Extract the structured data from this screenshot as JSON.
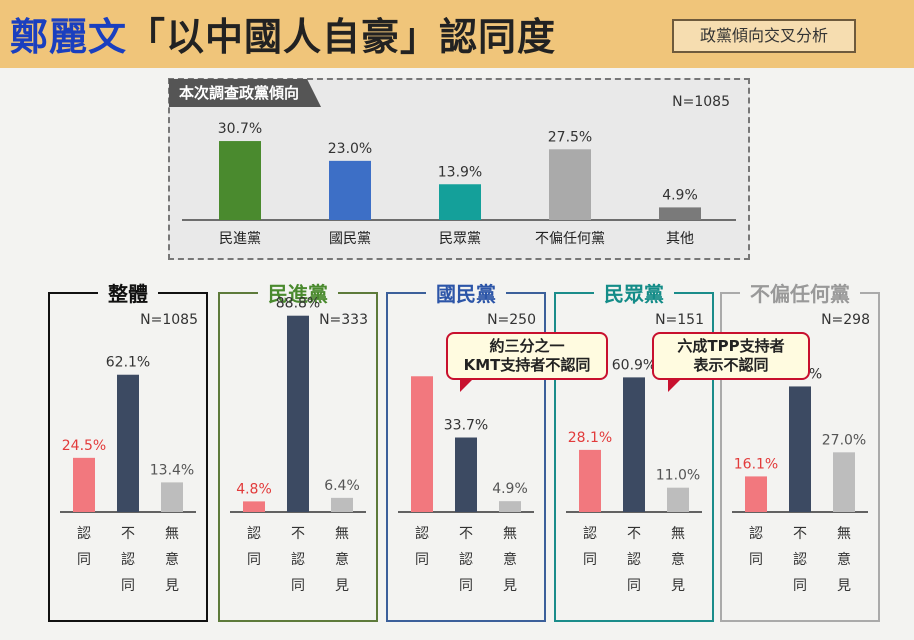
{
  "header": {
    "title_name": "鄭麗文",
    "title_rest": "「以中國人自豪」認同度",
    "tag": "政黨傾向交叉分析"
  },
  "top_box": {
    "label": "本次調查政黨傾向",
    "n": "N=1085"
  },
  "colors": {
    "green": "#4a8a2e",
    "blue": "#3d6fc6",
    "teal": "#14a09a",
    "gray": "#aaaaaa",
    "darkgray": "#7a7a7a",
    "pink": "#f2787e",
    "navy": "#3c4a62",
    "lightgray": "#bdbdbd",
    "red_label": "#e23b3b"
  },
  "chart_data": [
    {
      "type": "bar",
      "categories": [
        "民進黨",
        "國民黨",
        "民眾黨",
        "不偏任何黨",
        "其他"
      ],
      "values": [
        30.7,
        23.0,
        13.9,
        27.5,
        4.9
      ],
      "labels": [
        "30.7%",
        "23.0%",
        "13.9%",
        "27.5%",
        "4.9%"
      ],
      "bar_colors": [
        "#4a8a2e",
        "#3d6fc6",
        "#14a09a",
        "#aaaaaa",
        "#7a7a7a"
      ],
      "ylim": [
        0,
        35
      ]
    },
    {
      "type": "bar",
      "title": "整體",
      "n": "N=1085",
      "categories": [
        "認同",
        "不認同",
        "無意見"
      ],
      "values": [
        24.5,
        62.1,
        13.4
      ],
      "labels": [
        "24.5%",
        "62.1%",
        "13.4%"
      ],
      "ylim": [
        0,
        95
      ]
    },
    {
      "type": "bar",
      "title": "民進黨",
      "n": "N=333",
      "categories": [
        "認同",
        "不認同",
        "無意見"
      ],
      "values": [
        4.8,
        88.8,
        6.4
      ],
      "labels": [
        "4.8%",
        "88.8%",
        "6.4%"
      ],
      "ylim": [
        0,
        95
      ]
    },
    {
      "type": "bar",
      "title": "國民黨",
      "n": "N=250",
      "categories": [
        "認同",
        "不認同",
        "無意見"
      ],
      "values": [
        61.4,
        33.7,
        4.9
      ],
      "labels": [
        "",
        "33.7%",
        "4.9%"
      ],
      "ylim": [
        0,
        95
      ]
    },
    {
      "type": "bar",
      "title": "民眾黨",
      "n": "N=151",
      "categories": [
        "認同",
        "不認同",
        "無意見"
      ],
      "values": [
        28.1,
        60.9,
        11.0
      ],
      "labels": [
        "28.1%",
        "60.9%",
        "11.0%"
      ],
      "ylim": [
        0,
        95
      ]
    },
    {
      "type": "bar",
      "title": "不偏任何黨",
      "n": "N=298",
      "categories": [
        "認同",
        "不認同",
        "無意見"
      ],
      "values": [
        16.1,
        56.8,
        27.0
      ],
      "labels": [
        "16.1%",
        "56.8%",
        "27.0%"
      ],
      "ylim": [
        0,
        95
      ]
    }
  ],
  "callouts": [
    {
      "line1": "約三分之一",
      "line2": "KMT支持者不認同"
    },
    {
      "line1": "六成TPP支持者",
      "line2": "表示不認同"
    }
  ]
}
